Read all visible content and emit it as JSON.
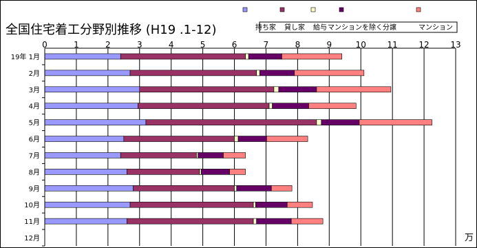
{
  "chart_data": {
    "type": "bar",
    "orientation": "horizontal",
    "stacked": true,
    "title": "全国住宅着工分野別推移 (H19 .1-12)",
    "unit_label": "万",
    "xlim": [
      0,
      13
    ],
    "x_ticks": [
      "0",
      "1",
      "2",
      "3",
      "4",
      "5",
      "6",
      "7",
      "8",
      "9",
      "10",
      "11",
      "12",
      "13"
    ],
    "grid": "vertical",
    "legend_position": "top-right",
    "categories": [
      "19年 1月",
      "2月",
      "3月",
      "4月",
      "5月",
      "6月",
      "7月",
      "8月",
      "9月",
      "10月",
      "11月",
      "12月"
    ],
    "series": [
      {
        "name": "持ち家",
        "color": "#9999ff",
        "values": [
          2.4,
          2.7,
          3.0,
          2.95,
          3.2,
          2.5,
          2.4,
          2.6,
          2.8,
          2.7,
          2.6,
          0
        ]
      },
      {
        "name": "貸し家",
        "color": "#993366",
        "values": [
          3.95,
          4.0,
          4.25,
          4.15,
          5.4,
          3.5,
          2.4,
          2.3,
          3.2,
          3.9,
          4.0,
          0
        ]
      },
      {
        "name": "給与",
        "color": "#ffffcc",
        "values": [
          0.1,
          0.1,
          0.15,
          0.1,
          0.15,
          0.12,
          0.05,
          0.05,
          0.07,
          0.07,
          0.1,
          0
        ]
      },
      {
        "name": "マンションを除く分譲",
        "color": "#660066",
        "values": [
          1.05,
          1.1,
          1.2,
          1.15,
          1.2,
          0.9,
          0.8,
          0.9,
          1.1,
          1.0,
          1.1,
          0
        ]
      },
      {
        "name": "マンション",
        "color": "#ff8080",
        "values": [
          1.9,
          2.2,
          2.35,
          1.5,
          2.3,
          1.3,
          0.7,
          0.5,
          0.65,
          0.8,
          1.0,
          0
        ]
      }
    ]
  }
}
